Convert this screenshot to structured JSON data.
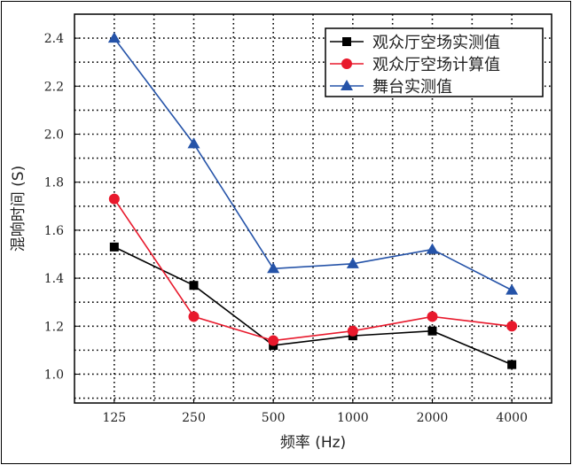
{
  "chart_data": {
    "type": "line",
    "xlabel": "频率 (Hz)",
    "ylabel": "混响时间 (S)",
    "categories": [
      "125",
      "250",
      "500",
      "1000",
      "2000",
      "4000"
    ],
    "ylim": [
      0.88,
      2.5
    ],
    "yticks": [
      "1.0",
      "1.2",
      "1.4",
      "1.6",
      "1.8",
      "2.0",
      "2.2",
      "2.4"
    ],
    "grid": true,
    "legend_position": "top-right",
    "series": [
      {
        "name": "观众厅空场实测值",
        "color": "#000000",
        "marker": "square",
        "values": [
          1.53,
          1.37,
          1.12,
          1.16,
          1.18,
          1.04
        ]
      },
      {
        "name": "观众厅空场计算值",
        "color": "#e8192c",
        "marker": "circle",
        "values": [
          1.73,
          1.24,
          1.14,
          1.18,
          1.24,
          1.2
        ]
      },
      {
        "name": "舞台实测值",
        "color": "#2553a8",
        "marker": "triangle",
        "values": [
          2.4,
          1.96,
          1.44,
          1.46,
          1.52,
          1.35
        ]
      }
    ]
  }
}
